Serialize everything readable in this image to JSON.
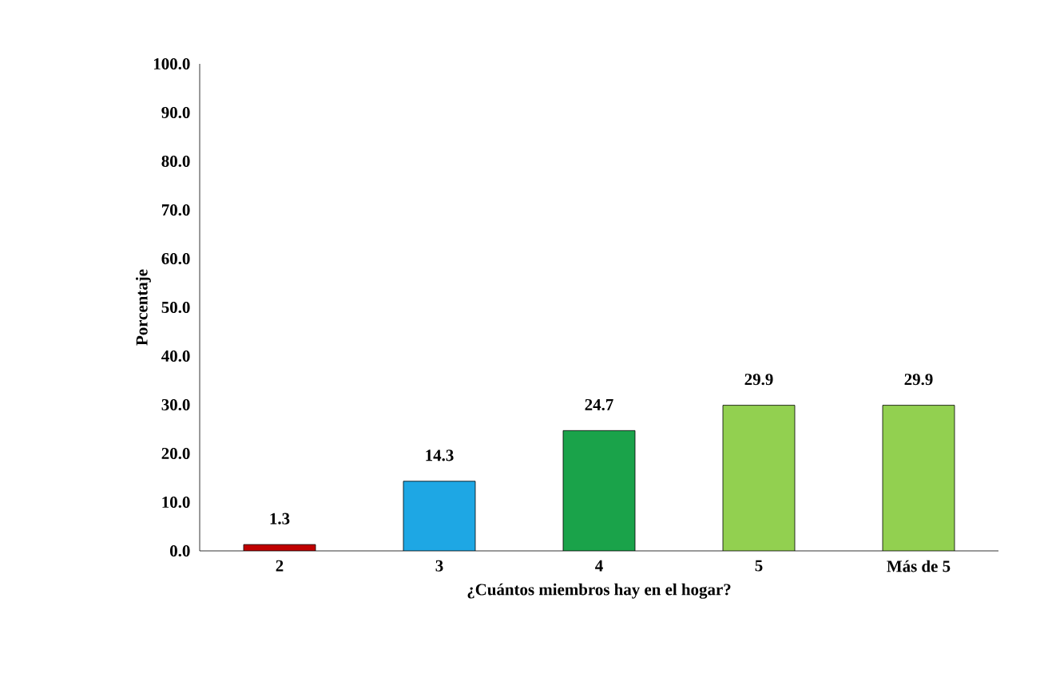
{
  "chart_data": {
    "type": "bar",
    "categories": [
      "2",
      "3",
      "4",
      "5",
      "Más de 5"
    ],
    "values": [
      1.3,
      14.3,
      24.7,
      29.9,
      29.9
    ],
    "colors": [
      "#c00000",
      "#1ea7e4",
      "#1aa34a",
      "#92d050",
      "#92d050"
    ],
    "xlabel": "¿Cuántos miembros hay en el hogar?",
    "ylabel": "Porcentaje",
    "ylim": [
      0,
      100
    ],
    "yticks": [
      {
        "value": 0,
        "label": "0.0"
      },
      {
        "value": 10,
        "label": "10.0"
      },
      {
        "value": 20,
        "label": "20.0"
      },
      {
        "value": 30,
        "label": "30.0"
      },
      {
        "value": 40,
        "label": "40.0"
      },
      {
        "value": 50,
        "label": "50.0"
      },
      {
        "value": 60,
        "label": "60.0"
      },
      {
        "value": 70,
        "label": "70.0"
      },
      {
        "value": 80,
        "label": "80.0"
      },
      {
        "value": 90,
        "label": "90.0"
      },
      {
        "value": 100,
        "label": "100.0"
      }
    ],
    "data_labels": true
  }
}
